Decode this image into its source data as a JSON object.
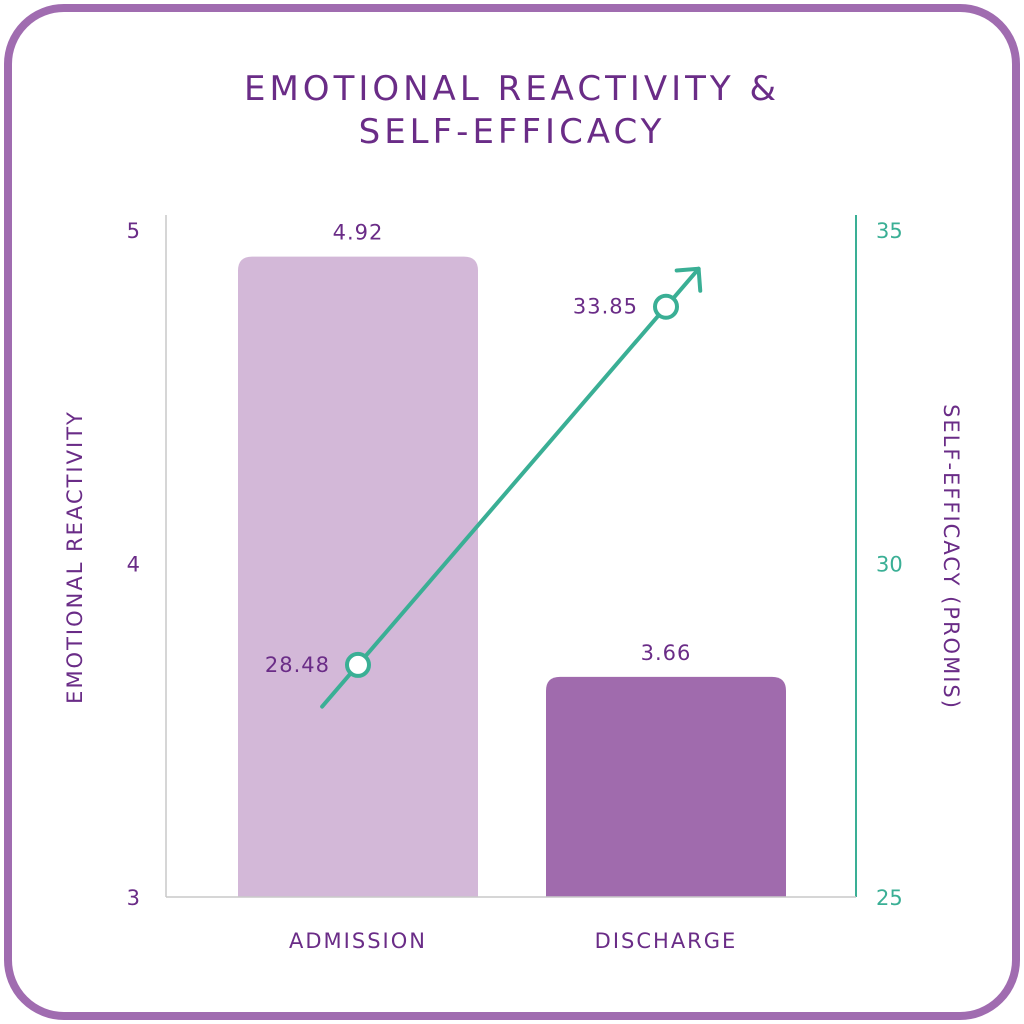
{
  "title_line1": "EMOTIONAL REACTIVITY &",
  "title_line2": "SELF-EFFICACY",
  "colors": {
    "frame": "#a06cb0",
    "title": "#6a2c87",
    "bar_admission": "#d3b8d8",
    "bar_discharge": "#a06bad",
    "line": "#3aaf95",
    "left_axis_text": "#6a2c87",
    "right_axis_text": "#3aaf95"
  },
  "chart_data": {
    "type": "bar",
    "categories": [
      "ADMISSION",
      "DISCHARGE"
    ],
    "left_axis": {
      "label": "EMOTIONAL REACTIVITY",
      "ylim": [
        3,
        5
      ],
      "ticks": [
        "3",
        "4",
        "5"
      ]
    },
    "right_axis": {
      "label": "SELF-EFFICACY (PROMIS)",
      "ylim": [
        25,
        35
      ],
      "ticks": [
        "25",
        "30",
        "35"
      ]
    },
    "bars": {
      "values": [
        4.92,
        3.66
      ],
      "labels": [
        "4.92",
        "3.66"
      ]
    },
    "line": {
      "type": "line",
      "axis": "right",
      "values": [
        28.48,
        33.85
      ],
      "labels": [
        "28.48",
        "33.85"
      ],
      "arrow": true
    },
    "grid": false
  }
}
